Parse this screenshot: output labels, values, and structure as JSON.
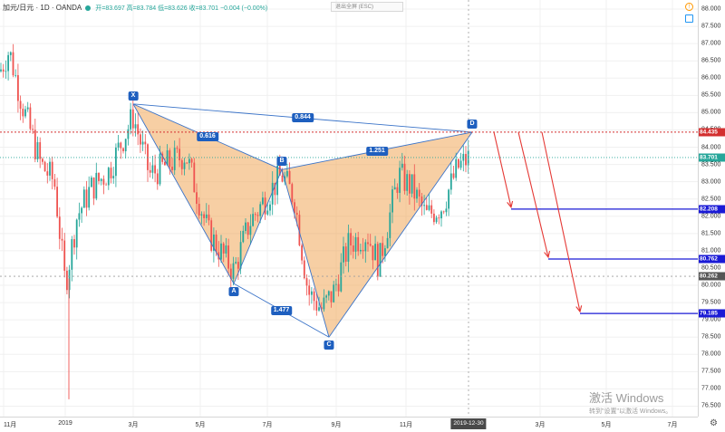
{
  "header": {
    "symbol": "加元/日元",
    "interval": "1D",
    "source": "OANDA",
    "ohlc": "开=83.697 高=83.784 低=83.626 收=83.701 −0.004 (−0.00%)"
  },
  "search_hint": "退出全屏 (ESC)",
  "watermark": {
    "line1": "激活 Windows",
    "line2": "转到\"设置\"以激活 Windows。"
  },
  "colors": {
    "pattern_fill": "#f0a75a",
    "pattern_line": "#3a73c8",
    "up": "#26a69a",
    "down": "#ef5350",
    "target": "#1a1ad6",
    "arrow": "#e53935",
    "level_red": "#d32f2f",
    "label_bg": "#1e5fbf"
  },
  "price_axis": {
    "ticks": [
      "88.000",
      "87.500",
      "87.000",
      "86.500",
      "86.000",
      "85.500",
      "85.000",
      "84.500",
      "84.000",
      "83.500",
      "83.000",
      "82.500",
      "82.000",
      "81.500",
      "81.000",
      "80.500",
      "80.000",
      "79.500",
      "79.000",
      "78.500",
      "78.000",
      "77.500",
      "77.000",
      "76.500"
    ],
    "tags": [
      {
        "value": "84.435",
        "color": "#d32f2f"
      },
      {
        "value": "83.701",
        "color": "#26a69a"
      },
      {
        "value": "82.208",
        "color": "#1a1ad6"
      },
      {
        "value": "80.762",
        "color": "#1a1ad6"
      },
      {
        "value": "80.262",
        "color": "#555555"
      },
      {
        "value": "79.185",
        "color": "#1a1ad6"
      }
    ]
  },
  "time_axis": {
    "labels": [
      "11月",
      "2019",
      "3月",
      "5月",
      "7月",
      "9月",
      "11月",
      "3月",
      "5月",
      "7月"
    ],
    "current": "2019-12-30"
  },
  "pattern": {
    "points": [
      "X",
      "A",
      "B",
      "C",
      "D"
    ],
    "ratios": {
      "XB": "0.616",
      "AC": "1.477",
      "BD": "1.251",
      "XD": "0.844"
    }
  },
  "chart_data": {
    "type": "candlestick",
    "title": "加元/日元 · 1D · OANDA",
    "ylim": [
      76.5,
      88.0
    ],
    "last": {
      "open": 83.697,
      "high": 83.784,
      "low": 83.626,
      "close": 83.701,
      "change": -0.004,
      "change_pct": "-0.00%"
    },
    "levels": [
      84.435,
      83.701,
      82.208,
      80.762,
      80.262,
      79.185
    ],
    "pattern_prices": {
      "X": 85.25,
      "A": 80.05,
      "B": 83.35,
      "C": 78.5,
      "D": 84.435
    },
    "targets": [
      82.208,
      80.762,
      79.185
    ]
  }
}
